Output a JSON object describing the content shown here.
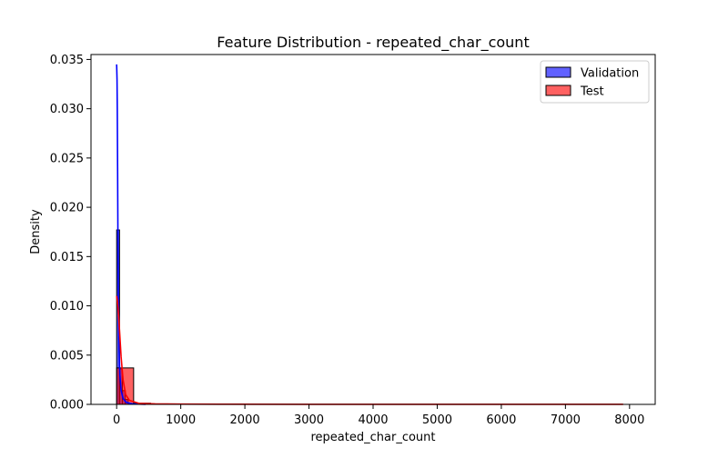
{
  "chart_data": {
    "type": "histogram",
    "title": "Feature Distribution - repeated_char_count",
    "xlabel": "repeated_char_count",
    "ylabel": "Density",
    "xlim": [
      -400,
      8400
    ],
    "ylim": [
      0,
      0.0355
    ],
    "x_ticks": [
      0,
      1000,
      2000,
      3000,
      4000,
      5000,
      6000,
      7000,
      8000
    ],
    "x_tick_labels": [
      "0",
      "1000",
      "2000",
      "3000",
      "4000",
      "5000",
      "6000",
      "7000",
      "8000"
    ],
    "y_ticks": [
      0,
      0.005,
      0.01,
      0.015,
      0.02,
      0.025,
      0.03,
      0.035
    ],
    "y_tick_labels": [
      "0.000",
      "0.005",
      "0.010",
      "0.015",
      "0.020",
      "0.025",
      "0.030",
      "0.035"
    ],
    "grid": false,
    "legend_position": "top-right",
    "series": [
      {
        "name": "Validation",
        "color": "#0000ff",
        "fill_opacity": 0.62,
        "bins": [
          {
            "x0": 0,
            "x1": 45,
            "density": 0.0177
          },
          {
            "x0": 45,
            "x1": 90,
            "density": 0.0036
          },
          {
            "x0": 90,
            "x1": 135,
            "density": 0.0014
          },
          {
            "x0": 135,
            "x1": 180,
            "density": 0.0005
          },
          {
            "x0": 180,
            "x1": 225,
            "density": 0.0001
          }
        ],
        "kde": [
          [
            0,
            0.0345
          ],
          [
            3,
            0.0338
          ],
          [
            6,
            0.033
          ],
          [
            10,
            0.03
          ],
          [
            15,
            0.024
          ],
          [
            20,
            0.017
          ],
          [
            28,
            0.01
          ],
          [
            38,
            0.0055
          ],
          [
            50,
            0.003
          ],
          [
            70,
            0.0014
          ],
          [
            100,
            0.0006
          ],
          [
            150,
            0.0002
          ],
          [
            250,
            5e-05
          ],
          [
            450,
            0.0
          ]
        ]
      },
      {
        "name": "Test",
        "color": "#ff0000",
        "fill_opacity": 0.62,
        "bins": [
          {
            "x0": 0,
            "x1": 265,
            "density": 0.0037
          },
          {
            "x0": 265,
            "x1": 530,
            "density": 0.00012
          },
          {
            "x0": 530,
            "x1": 795,
            "density": 5e-05
          },
          {
            "x0": 795,
            "x1": 1060,
            "density": 3e-05
          },
          {
            "x0": 1060,
            "x1": 1325,
            "density": 2e-05
          },
          {
            "x0": 1325,
            "x1": 1590,
            "density": 1e-05
          }
        ],
        "kde": [
          [
            0,
            0.011
          ],
          [
            10,
            0.0106
          ],
          [
            25,
            0.0095
          ],
          [
            45,
            0.0075
          ],
          [
            70,
            0.0048
          ],
          [
            100,
            0.0025
          ],
          [
            140,
            0.001
          ],
          [
            200,
            0.0004
          ],
          [
            350,
            0.0001
          ],
          [
            600,
            5e-05
          ],
          [
            1000,
            3e-05
          ],
          [
            1600,
            2e-05
          ],
          [
            3000,
            1e-05
          ],
          [
            5000,
            1e-05
          ],
          [
            7000,
            1e-05
          ],
          [
            7900,
            1e-05
          ]
        ]
      }
    ]
  }
}
